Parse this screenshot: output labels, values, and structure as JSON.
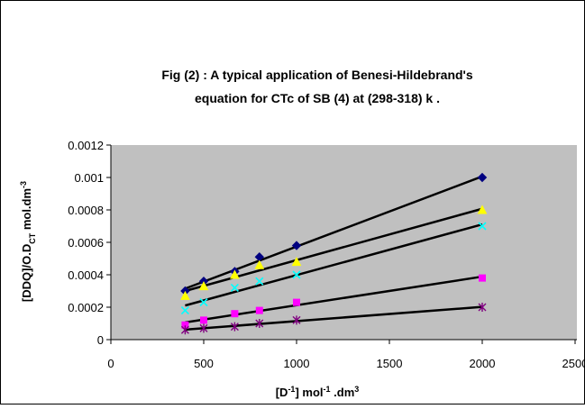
{
  "chart_data": {
    "type": "scatter",
    "title": [
      "Fig (2) : A  typical application  of Benesi-Hildebrand's",
      "equation for CTc of SB (4) at (298-318) k ."
    ],
    "ylabel": [
      {
        "text": "[DDQ]/O.D"
      },
      {
        "text": "CT",
        "sub": true
      },
      {
        "text": "  mol.dm"
      },
      {
        "text": "-3",
        "sup": true
      }
    ],
    "xlabel": [
      {
        "text": "[D"
      },
      {
        "text": "-1",
        "sup": true
      },
      {
        "text": "]  mol"
      },
      {
        "text": "-1",
        "sup": true
      },
      {
        "text": " .dm"
      },
      {
        "text": "3",
        "sup": true
      }
    ],
    "x": [
      400,
      500,
      667,
      800,
      1000,
      2000
    ],
    "series": [
      {
        "color": "#000080",
        "marker": "diamond",
        "values": [
          0.0003,
          0.00036,
          0.00042,
          0.00051,
          0.00058,
          0.001
        ]
      },
      {
        "color": "#ffff00",
        "marker": "triangle",
        "values": [
          0.00027,
          0.00033,
          0.0004,
          0.00046,
          0.00048,
          0.0008
        ]
      },
      {
        "color": "#00ffff",
        "marker": "x",
        "values": [
          0.00018,
          0.00023,
          0.00032,
          0.00036,
          0.0004,
          0.0007
        ]
      },
      {
        "color": "#ff00ff",
        "marker": "square",
        "values": [
          9e-05,
          0.00012,
          0.00016,
          0.00018,
          0.00023,
          0.00038
        ]
      },
      {
        "color": "#800080",
        "marker": "asterisk",
        "values": [
          6e-05,
          7e-05,
          8e-05,
          0.0001,
          0.00012,
          0.0002
        ]
      }
    ],
    "trendline": true,
    "xlim": [
      0,
      2500
    ],
    "xticks": [
      0,
      500,
      1000,
      1500,
      2000,
      2500
    ],
    "ylim": [
      0,
      0.0012
    ],
    "yticks": [
      0,
      0.0002,
      0.0004,
      0.0006,
      0.0008,
      0.001,
      0.0012
    ],
    "plot_background": "#c0c0c0"
  }
}
